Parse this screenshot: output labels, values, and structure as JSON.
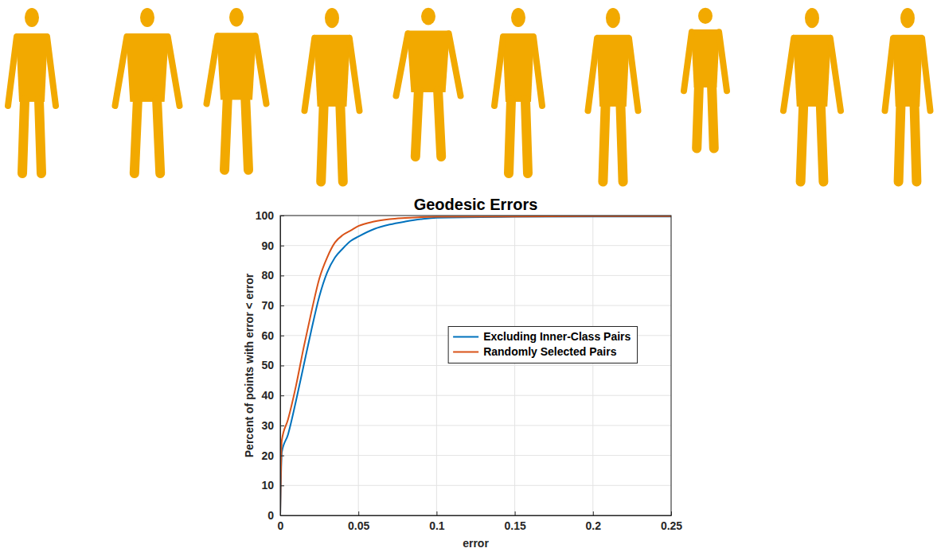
{
  "chart_data": {
    "type": "line",
    "title": "Geodesic Errors",
    "x_label": "error",
    "y_label": "Percent of points with error < error",
    "x": [
      0,
      0.001,
      0.005,
      0.01,
      0.015,
      0.02,
      0.025,
      0.03,
      0.035,
      0.04,
      0.045,
      0.05,
      0.06,
      0.07,
      0.08,
      0.09,
      0.1,
      0.15,
      0.2,
      0.25
    ],
    "series": [
      {
        "name": "Excluding Inner-Class Pairs",
        "color": "#0072bd",
        "values": [
          0,
          21,
          27,
          38,
          50,
          62,
          73,
          81,
          86,
          89,
          91.5,
          93,
          95.5,
          97,
          98,
          98.8,
          99.3,
          99.6,
          99.7,
          99.7
        ]
      },
      {
        "name": "Randomly Selected Pairs",
        "color": "#d95319",
        "values": [
          0,
          25,
          32,
          43,
          56,
          68,
          79,
          86,
          91,
          93.5,
          95,
          96.5,
          98,
          98.8,
          99.2,
          99.5,
          99.6,
          99.7,
          99.8,
          99.8
        ]
      }
    ],
    "xlim": [
      0,
      0.25
    ],
    "xticks": [
      0,
      0.05,
      0.1,
      0.15,
      0.2,
      0.25
    ],
    "ylim": [
      0,
      100
    ],
    "yticks": [
      0,
      10,
      20,
      30,
      40,
      50,
      60,
      70,
      80,
      90,
      100
    ],
    "grid": true,
    "legend": "center"
  }
}
